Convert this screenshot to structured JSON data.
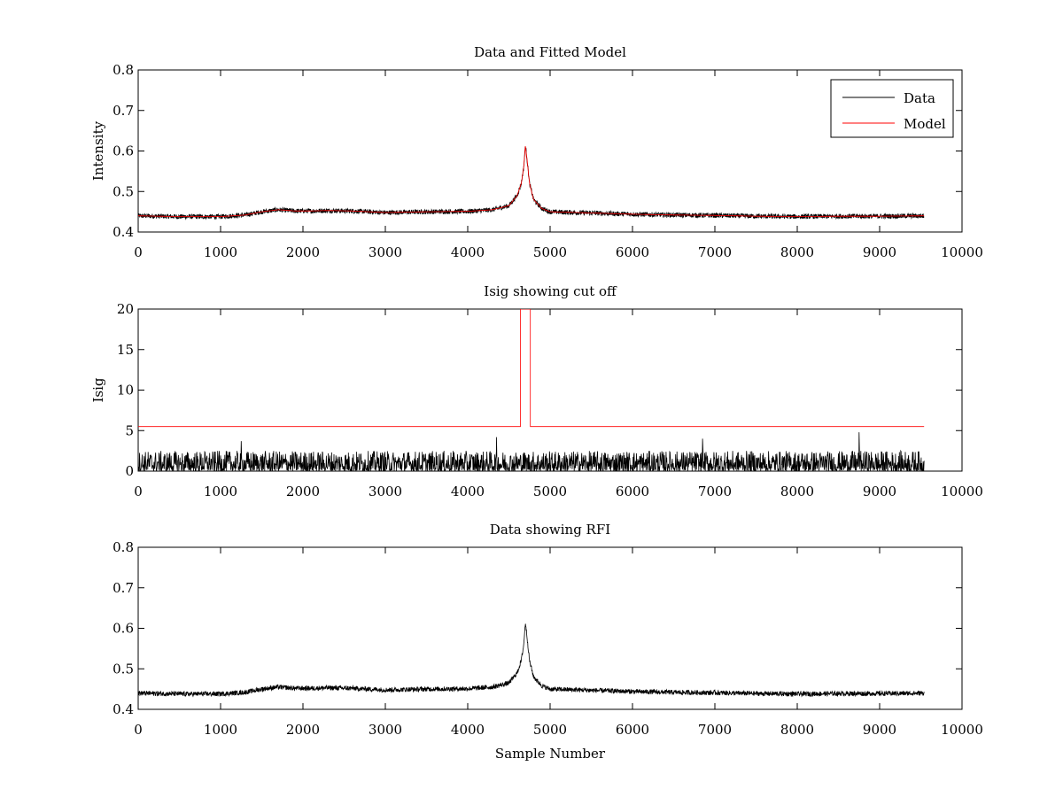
{
  "chart_data": [
    {
      "type": "line",
      "title": "Data and Fitted Model",
      "xlabel": "",
      "ylabel": "Intensity",
      "xlim": [
        0,
        10000
      ],
      "ylim": [
        0.4,
        0.8
      ],
      "xticks": [
        0,
        1000,
        2000,
        3000,
        4000,
        5000,
        6000,
        7000,
        8000,
        9000,
        10000
      ],
      "yticks": [
        0.4,
        0.5,
        0.6,
        0.7,
        0.8
      ],
      "legend": {
        "placement": "top-right",
        "entries": [
          "Data",
          "Model"
        ]
      },
      "grid": false,
      "series": [
        {
          "name": "Data",
          "color": "#000000",
          "noise_amplitude": 0.006,
          "x": [
            0,
            500,
            1000,
            1300,
            1500,
            1700,
            1900,
            2100,
            2300,
            2600,
            3000,
            3500,
            4000,
            4300,
            4500,
            4600,
            4650,
            4680,
            4700,
            4720,
            4750,
            4800,
            4900,
            5000,
            5500,
            6000,
            6500,
            7000,
            7500,
            8000,
            8500,
            9000,
            9540
          ],
          "values": [
            0.44,
            0.438,
            0.438,
            0.442,
            0.45,
            0.455,
            0.452,
            0.452,
            0.453,
            0.452,
            0.448,
            0.45,
            0.451,
            0.455,
            0.465,
            0.49,
            0.52,
            0.56,
            0.615,
            0.58,
            0.52,
            0.48,
            0.458,
            0.45,
            0.447,
            0.444,
            0.442,
            0.441,
            0.439,
            0.438,
            0.439,
            0.439,
            0.44
          ]
        },
        {
          "name": "Model",
          "color": "#ff0000",
          "x": [
            0,
            500,
            1000,
            1300,
            1500,
            1700,
            1900,
            2100,
            2300,
            2600,
            3000,
            3500,
            4000,
            4300,
            4500,
            4600,
            4650,
            4680,
            4700,
            4720,
            4750,
            4800,
            4900,
            5000,
            5500,
            6000,
            6500,
            7000,
            7500,
            8000,
            8500,
            9000,
            9540
          ],
          "values": [
            0.44,
            0.438,
            0.438,
            0.442,
            0.45,
            0.455,
            0.452,
            0.452,
            0.453,
            0.452,
            0.448,
            0.45,
            0.451,
            0.455,
            0.465,
            0.49,
            0.52,
            0.56,
            0.612,
            0.58,
            0.52,
            0.48,
            0.458,
            0.45,
            0.447,
            0.444,
            0.442,
            0.441,
            0.439,
            0.438,
            0.439,
            0.439,
            0.44
          ]
        }
      ]
    },
    {
      "type": "line",
      "title": "Isig showing cut off",
      "xlabel": "",
      "ylabel": "Isig",
      "xlim": [
        0,
        10000
      ],
      "ylim": [
        0,
        20
      ],
      "xticks": [
        0,
        1000,
        2000,
        3000,
        4000,
        5000,
        6000,
        7000,
        8000,
        9000,
        10000
      ],
      "yticks": [
        0,
        5,
        10,
        15,
        20
      ],
      "grid": false,
      "series": [
        {
          "name": "Isig",
          "color": "#000000",
          "noise_range": [
            0,
            2.5
          ],
          "x_range": [
            0,
            9540
          ],
          "spikes": [
            {
              "x": 1250,
              "y": 3.7
            },
            {
              "x": 4350,
              "y": 4.2
            },
            {
              "x": 6850,
              "y": 4.0
            },
            {
              "x": 8750,
              "y": 4.8
            }
          ]
        },
        {
          "name": "Cut off",
          "color": "#ff0000",
          "x": [
            0,
            4640,
            4640,
            4760,
            4760,
            9540
          ],
          "values": [
            5.5,
            5.5,
            20,
            20,
            5.5,
            5.5
          ]
        }
      ]
    },
    {
      "type": "line",
      "title": "Data showing RFI",
      "xlabel": "Sample Number",
      "ylabel": "",
      "xlim": [
        0,
        10000
      ],
      "ylim": [
        0.4,
        0.8
      ],
      "xticks": [
        0,
        1000,
        2000,
        3000,
        4000,
        5000,
        6000,
        7000,
        8000,
        9000,
        10000
      ],
      "yticks": [
        0.4,
        0.5,
        0.6,
        0.7,
        0.8
      ],
      "grid": false,
      "series": [
        {
          "name": "Data",
          "color": "#000000",
          "noise_amplitude": 0.006,
          "x": [
            0,
            500,
            1000,
            1300,
            1500,
            1700,
            1900,
            2100,
            2300,
            2600,
            3000,
            3500,
            4000,
            4300,
            4500,
            4600,
            4650,
            4680,
            4700,
            4720,
            4750,
            4800,
            4900,
            5000,
            5500,
            6000,
            6500,
            7000,
            7500,
            8000,
            8500,
            9000,
            9540
          ],
          "values": [
            0.44,
            0.438,
            0.438,
            0.442,
            0.45,
            0.455,
            0.452,
            0.452,
            0.453,
            0.452,
            0.448,
            0.45,
            0.451,
            0.455,
            0.465,
            0.49,
            0.52,
            0.56,
            0.615,
            0.58,
            0.52,
            0.48,
            0.458,
            0.45,
            0.447,
            0.444,
            0.442,
            0.441,
            0.439,
            0.438,
            0.439,
            0.439,
            0.44
          ]
        }
      ]
    }
  ]
}
